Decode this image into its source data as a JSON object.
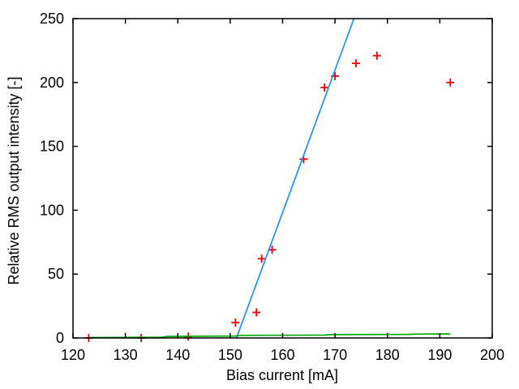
{
  "chart_data": {
    "type": "scatter",
    "title": "",
    "xlabel": "Bias current [mA]",
    "ylabel": "Relative RMS output intensity [-]",
    "xlim": [
      120,
      200
    ],
    "ylim": [
      0,
      250
    ],
    "xticks": [
      120,
      130,
      140,
      150,
      160,
      170,
      180,
      190,
      200
    ],
    "yticks": [
      0,
      50,
      100,
      150,
      200,
      250
    ],
    "grid": false,
    "legend": "none",
    "tick_style": "inward-mirrored-box",
    "axis_color": "#000000",
    "background": "#ffffff",
    "series": [
      {
        "name": "measured-points",
        "type": "scatter",
        "marker": "plus",
        "color": "#ee0000",
        "points": [
          [
            123,
            0
          ],
          [
            133,
            0
          ],
          [
            142,
            1
          ],
          [
            151,
            12
          ],
          [
            155,
            20
          ],
          [
            156,
            62
          ],
          [
            158,
            69
          ],
          [
            164,
            140
          ],
          [
            168,
            196
          ],
          [
            170,
            205
          ],
          [
            174,
            215
          ],
          [
            178,
            221
          ],
          [
            192,
            200
          ]
        ]
      },
      {
        "name": "threshold-fit-line",
        "type": "line",
        "color": "#1e90ff",
        "points": [
          [
            151.2,
            0
          ],
          [
            173.6,
            250
          ]
        ]
      },
      {
        "name": "below-threshold-baseline",
        "type": "line",
        "color": "#00aa00",
        "points": [
          [
            123,
            0.3
          ],
          [
            137,
            0.6
          ],
          [
            138,
            1.2
          ],
          [
            151,
            1.5
          ],
          [
            152,
            2.0
          ],
          [
            168,
            2.2
          ],
          [
            169,
            2.6
          ],
          [
            184,
            2.8
          ],
          [
            185,
            3.0
          ],
          [
            192,
            3.2
          ]
        ]
      }
    ]
  }
}
